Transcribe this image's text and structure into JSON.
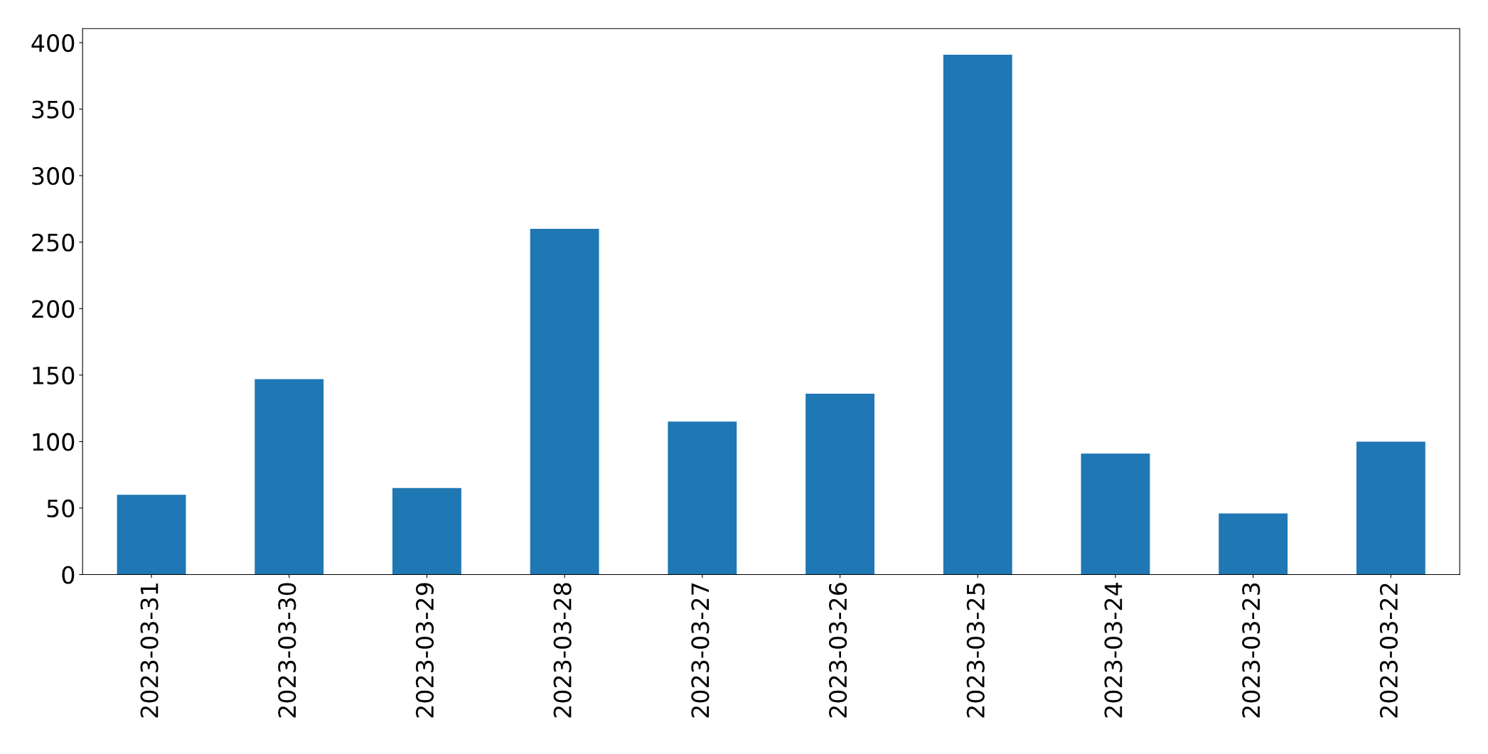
{
  "chart_data": {
    "type": "bar",
    "categories": [
      "2023-03-31",
      "2023-03-30",
      "2023-03-29",
      "2023-03-28",
      "2023-03-27",
      "2023-03-26",
      "2023-03-25",
      "2023-03-24",
      "2023-03-23",
      "2023-03-22"
    ],
    "values": [
      60,
      147,
      65,
      260,
      115,
      136,
      391,
      91,
      46,
      100
    ],
    "color": "#1f77b4",
    "ylim": [
      0,
      410.55
    ],
    "yticks": [
      0,
      50,
      100,
      150,
      200,
      250,
      300,
      350,
      400
    ],
    "grid": false,
    "legend": false
  }
}
